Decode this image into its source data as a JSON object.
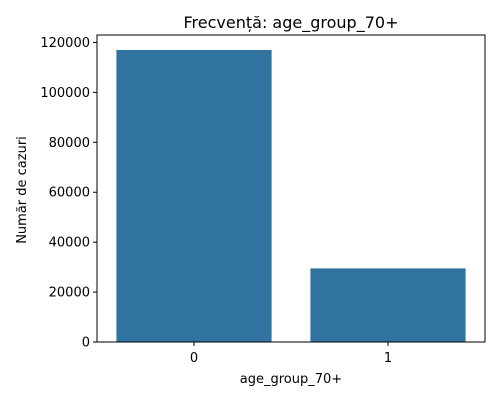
{
  "chart_data": {
    "type": "bar",
    "title": "Frecvență: age_group_70+",
    "xlabel": "age_group_70+",
    "ylabel": "Număr de cazuri",
    "categories": [
      "0",
      "1"
    ],
    "values": [
      117000,
      29500
    ],
    "ylim": [
      0,
      123000
    ],
    "yticks": [
      0,
      20000,
      40000,
      60000,
      80000,
      100000,
      120000
    ],
    "ytick_labels": [
      "0",
      "20000",
      "40000",
      "60000",
      "80000",
      "100000",
      "120000"
    ],
    "bar_color": "#3274a1",
    "grid": false,
    "legend": "none"
  }
}
